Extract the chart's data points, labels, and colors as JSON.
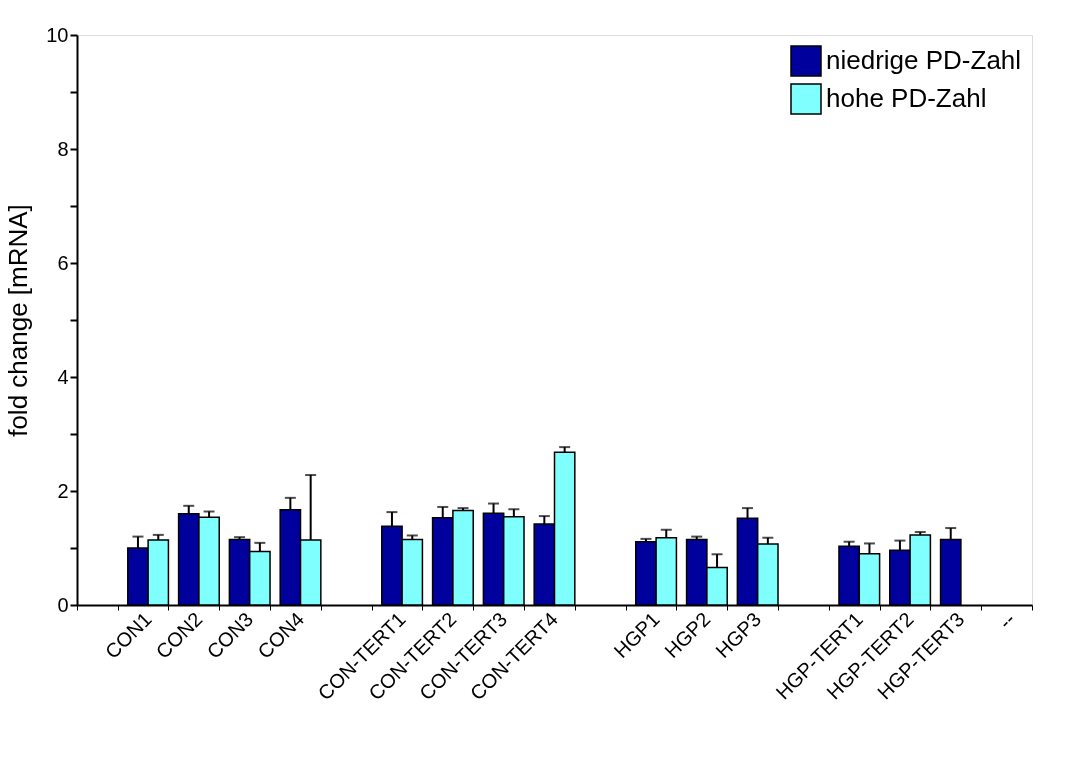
{
  "chart_data": {
    "type": "bar",
    "ylabel": "fold change [mRNA]",
    "categories": [
      null,
      "CON1",
      "CON2",
      "CON3",
      "CON4",
      null,
      "CON-TERT1",
      "CON-TERT2",
      "CON-TERT3",
      "CON-TERT4",
      null,
      "HGP1",
      "HGP2",
      "HGP3",
      null,
      "HGP-TERT1",
      "HGP-TERT2",
      "HGP-TERT3",
      "--"
    ],
    "series": [
      {
        "name": "niedrige PD-Zahl",
        "color": "#00009c",
        "values": [
          null,
          1.0,
          1.6,
          1.15,
          1.67,
          null,
          1.38,
          1.53,
          1.61,
          1.42,
          null,
          1.11,
          1.15,
          1.52,
          null,
          1.03,
          0.96,
          1.15,
          null
        ],
        "errors": [
          null,
          [
            1.0,
            1.2
          ],
          [
            1.6,
            1.74
          ],
          [
            1.15,
            1.19
          ],
          [
            1.67,
            1.88
          ],
          null,
          [
            1.38,
            1.63
          ],
          [
            1.53,
            1.72
          ],
          [
            1.61,
            1.78
          ],
          [
            1.42,
            1.56
          ],
          null,
          [
            1.11,
            1.16
          ],
          [
            1.15,
            1.2
          ],
          [
            1.52,
            1.7
          ],
          null,
          [
            1.03,
            1.11
          ],
          [
            0.96,
            1.13
          ],
          [
            1.15,
            1.35
          ],
          null
        ]
      },
      {
        "name": "hohe PD-Zahl",
        "color": "#80ffff",
        "values": [
          null,
          1.14,
          1.54,
          0.94,
          1.14,
          null,
          1.15,
          1.66,
          1.55,
          2.68,
          null,
          1.18,
          0.66,
          1.07,
          null,
          0.9,
          1.23,
          null,
          null
        ],
        "errors": [
          null,
          [
            1.14,
            1.23
          ],
          [
            1.54,
            1.64
          ],
          [
            0.94,
            1.09
          ],
          [
            1.14,
            2.28
          ],
          null,
          [
            1.15,
            1.22
          ],
          [
            1.66,
            1.7
          ],
          [
            1.55,
            1.68
          ],
          [
            2.68,
            2.77
          ],
          null,
          [
            1.18,
            1.32
          ],
          [
            0.66,
            0.89
          ],
          [
            1.07,
            1.18
          ],
          null,
          [
            0.9,
            1.08
          ],
          [
            1.23,
            1.28
          ],
          null,
          null
        ]
      }
    ],
    "ylim": [
      0,
      10
    ],
    "yticks": [
      0,
      {
        "value": 1,
        "label": null
      },
      2,
      {
        "value": 3,
        "label": null
      },
      4,
      {
        "value": 5,
        "label": null
      },
      6,
      {
        "value": 7,
        "label": null
      },
      8,
      {
        "value": 9,
        "label": null
      },
      10
    ],
    "grid": false,
    "legend": "top right"
  }
}
